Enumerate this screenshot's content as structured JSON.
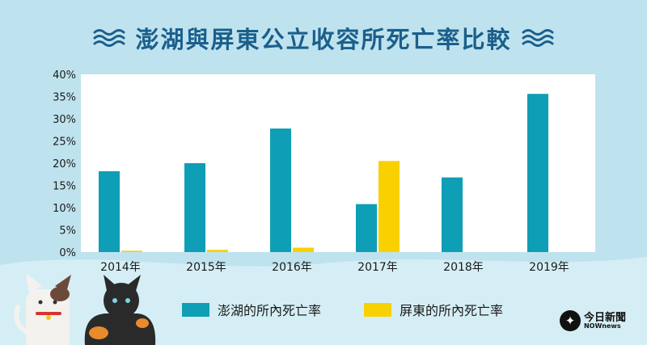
{
  "title": "澎湖與屏東公立收容所死亡率比較",
  "logo": {
    "main": "今日新聞",
    "sub": "NOWnews"
  },
  "colors": {
    "penghu": "#0e9eb5",
    "pingtung": "#f9d000",
    "title": "#1b5f8c",
    "background": "#bfe3ee"
  },
  "icons": {
    "title_left": "wave-icon",
    "title_right": "wave-icon",
    "logo": "bird-logo-icon"
  },
  "chart_data": {
    "type": "bar",
    "title": "澎湖與屏東公立收容所死亡率比較",
    "categories": [
      "2014年",
      "2015年",
      "2016年",
      "2017年",
      "2018年",
      "2019年"
    ],
    "series": [
      {
        "name": "澎湖的所內死亡率",
        "values": [
          18.2,
          20.0,
          27.8,
          10.8,
          16.8,
          35.6
        ]
      },
      {
        "name": "屏東的所內死亡率",
        "values": [
          0.3,
          0.5,
          1.0,
          20.5,
          0,
          0
        ]
      }
    ],
    "ylim": [
      0,
      40
    ],
    "yticks": [
      "0%",
      "5%",
      "10%",
      "15%",
      "20%",
      "25%",
      "30%",
      "35%",
      "40%"
    ],
    "grid": false,
    "legend": "bottom"
  }
}
